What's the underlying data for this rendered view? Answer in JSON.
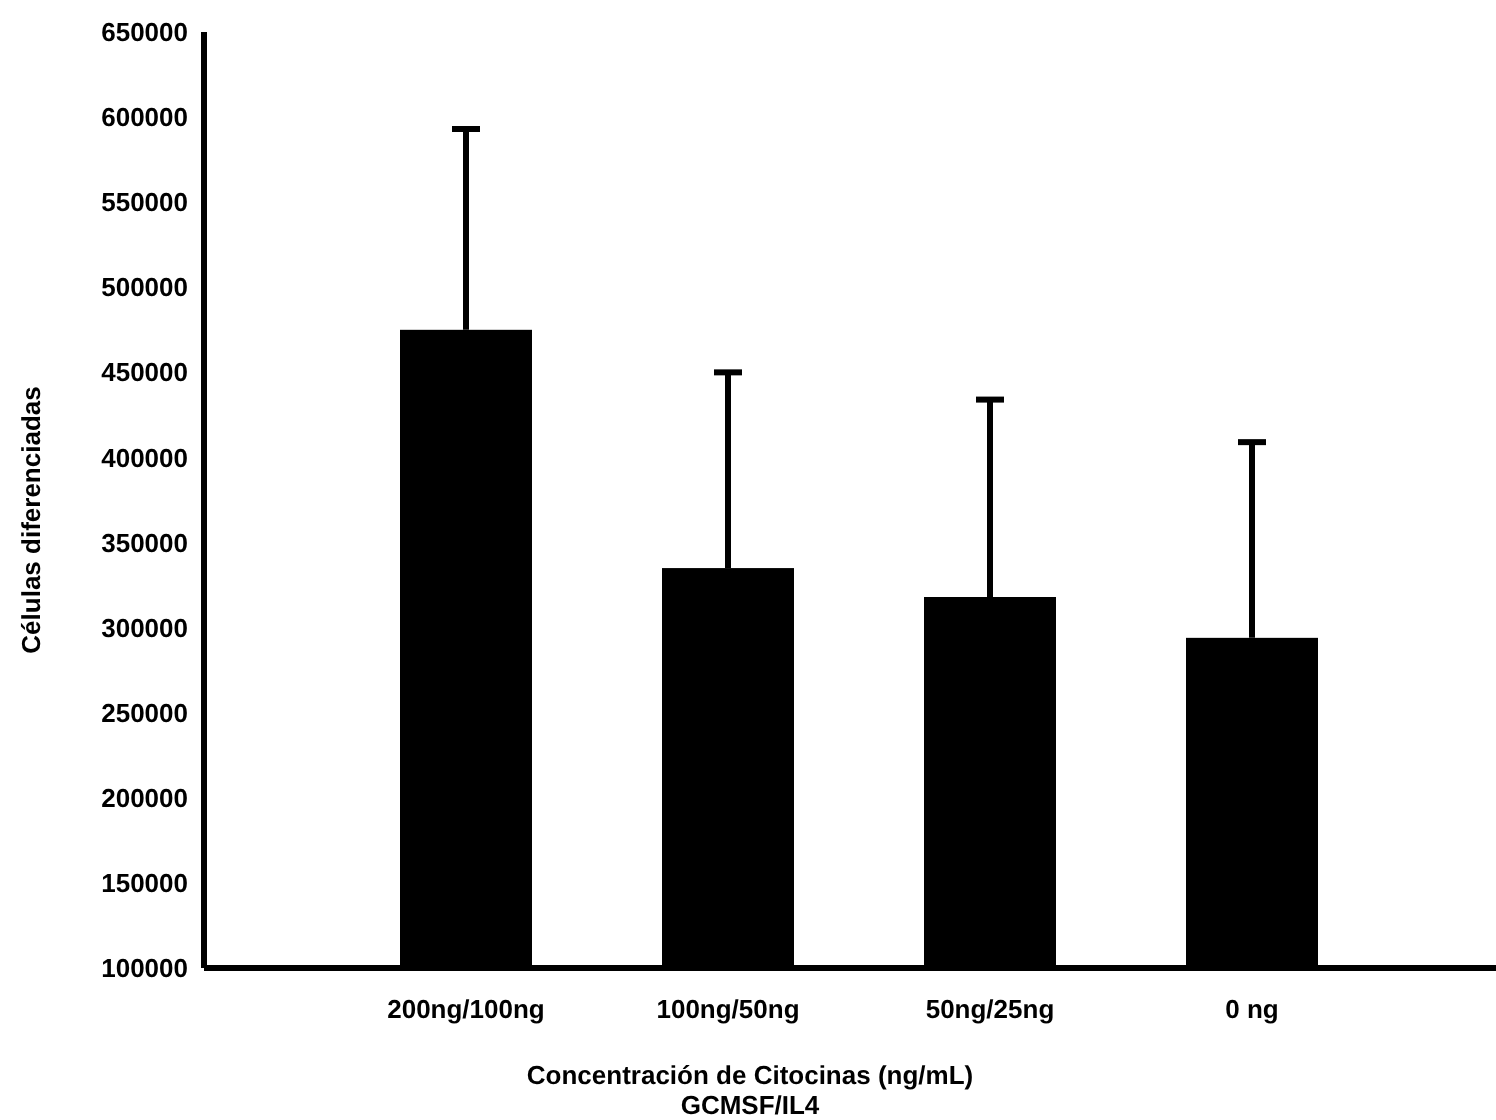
{
  "chart_data": {
    "type": "bar",
    "xlabel": "Concentración de Citocinas (ng/mL)\nGCMSF/IL4",
    "ylabel": "Células diferenciadas",
    "categories": [
      "200ng/100ng",
      "100ng/50ng",
      "50ng/25ng",
      "0 ng"
    ],
    "values": [
      475000,
      335000,
      318000,
      294000
    ],
    "color": "#000000",
    "errors": [
      [
        475000,
        593000
      ],
      [
        335000,
        450000
      ],
      [
        318000,
        434000
      ],
      [
        294000,
        409000
      ]
    ],
    "ylim": [
      100000,
      650000
    ],
    "yticks": [
      100000,
      150000,
      200000,
      250000,
      300000,
      350000,
      400000,
      450000,
      500000,
      550000,
      600000,
      650000
    ],
    "grid": false
  }
}
